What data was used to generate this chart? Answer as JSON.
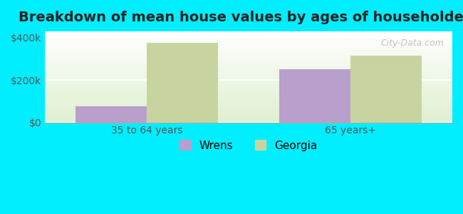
{
  "title": "Breakdown of mean house values by ages of householders",
  "categories": [
    "35 to 64 years",
    "65 years+"
  ],
  "wrens_values": [
    75000,
    252000
  ],
  "georgia_values": [
    375000,
    315000
  ],
  "wrens_color": "#b89fcc",
  "georgia_color": "#c8d4a0",
  "background_color": "#00eeff",
  "ylim": [
    0,
    430000
  ],
  "yticks": [
    0,
    200000,
    400000
  ],
  "ytick_labels": [
    "$0",
    "$200k",
    "$400k"
  ],
  "legend_labels": [
    "Wrens",
    "Georgia"
  ],
  "bar_width": 0.35,
  "title_fontsize": 14,
  "tick_fontsize": 10,
  "legend_fontsize": 11,
  "watermark": "City-Data.com"
}
